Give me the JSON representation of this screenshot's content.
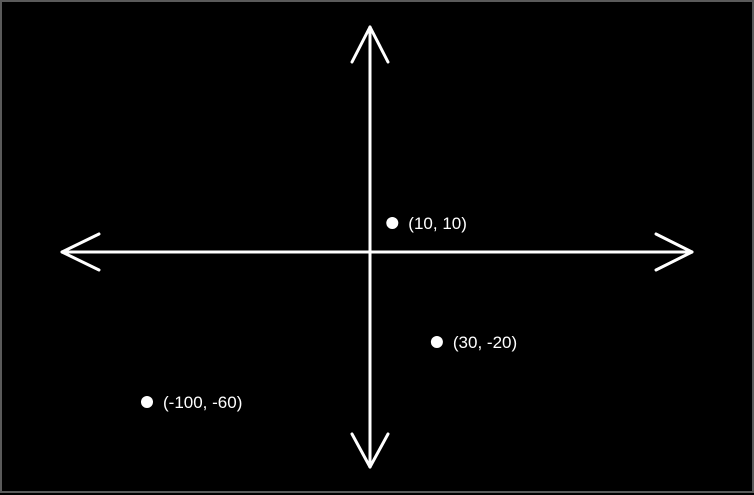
{
  "colors": {
    "background": "#000000",
    "foreground": "#ffffff",
    "frame": "#5a5a5a"
  },
  "points": [
    {
      "x": -100,
      "y": -60,
      "label": "(-100, -60)"
    },
    {
      "x": 30,
      "y": -20,
      "label": "(30, -20)"
    },
    {
      "x": 10,
      "y": 10,
      "label": "(10, 10)"
    }
  ]
}
